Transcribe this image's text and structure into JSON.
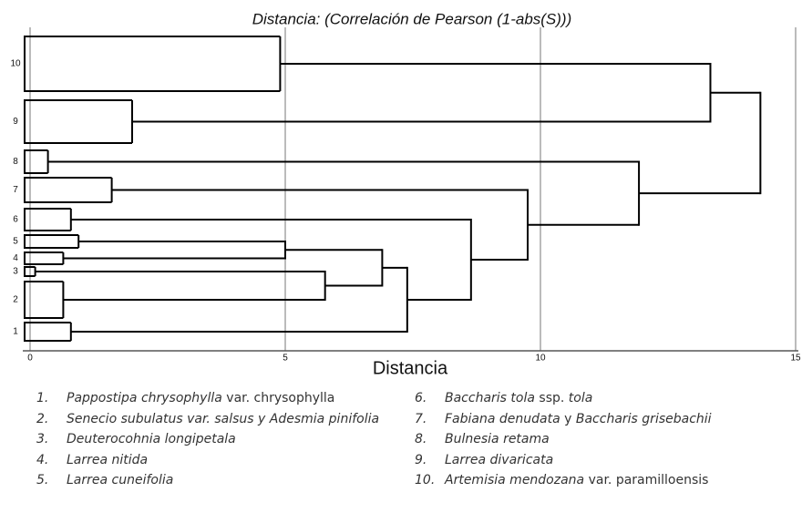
{
  "chart_data": {
    "type": "dendrogram",
    "title": "Distancia: (Correlación de Pearson (1-abs(S)))",
    "x_label": "Distancia",
    "xlim": [
      0,
      15
    ],
    "xticks": [
      0,
      5,
      10,
      15
    ],
    "grid": true,
    "line_color": "#000000",
    "tree": {
      "height": 14.31,
      "children": [
        {
          "height": 13.33,
          "children": [
            {
              "label": "10",
              "height": 4.9
            },
            {
              "label": "9",
              "height": 2.0
            }
          ]
        },
        {
          "height": 11.93,
          "children": [
            {
              "label": "8",
              "height": 0.35
            },
            {
              "height": 9.75,
              "children": [
                {
                  "label": "7",
                  "height": 1.6
                },
                {
                  "height": 8.64,
                  "children": [
                    {
                      "label": "6",
                      "height": 0.8
                    },
                    {
                      "height": 7.39,
                      "children": [
                        {
                          "height": 6.9,
                          "children": [
                            {
                              "height": 5.0,
                              "children": [
                                {
                                  "label": "5",
                                  "height": 0.95
                                },
                                {
                                  "label": "4",
                                  "height": 0.65
                                }
                              ]
                            },
                            {
                              "height": 5.78,
                              "children": [
                                {
                                  "label": "3",
                                  "height": 0.1
                                },
                                {
                                  "label": "2",
                                  "height": 0.65
                                }
                              ]
                            }
                          ]
                        },
                        {
                          "label": "1",
                          "height": 0.8
                        }
                      ]
                    }
                  ]
                }
              ]
            }
          ]
        }
      ]
    }
  },
  "legend": [
    {
      "number": "1.",
      "parts": [
        {
          "text": "Pappostipa chrysophylla",
          "italic": true
        },
        {
          "text": "var. chrysophylla",
          "italic": false
        }
      ]
    },
    {
      "number": "2.",
      "parts": [
        {
          "text": "Senecio subulatus var. salsus y Adesmia pinifolia",
          "italic": true
        }
      ]
    },
    {
      "number": "3.",
      "parts": [
        {
          "text": "Deuterocohnia longipetala",
          "italic": true
        }
      ]
    },
    {
      "number": "4.",
      "parts": [
        {
          "text": "Larrea nitida",
          "italic": true
        }
      ]
    },
    {
      "number": "5.",
      "parts": [
        {
          "text": "Larrea cuneifolia",
          "italic": true
        }
      ]
    },
    {
      "number": "6.",
      "parts": [
        {
          "text": "Baccharis tola",
          "italic": true
        },
        {
          "text": "ssp.",
          "italic": false
        },
        {
          "text": "tola",
          "italic": true
        }
      ]
    },
    {
      "number": "7.",
      "parts": [
        {
          "text": "Fabiana denudata",
          "italic": true
        },
        {
          "text": "y",
          "italic": false
        },
        {
          "text": "Baccharis grisebachii",
          "italic": true
        }
      ]
    },
    {
      "number": "8.",
      "parts": [
        {
          "text": "Bulnesia retama",
          "italic": true
        }
      ]
    },
    {
      "number": "9.",
      "parts": [
        {
          "text": "Larrea divaricata",
          "italic": true
        }
      ]
    },
    {
      "number": "10.",
      "parts": [
        {
          "text": "Artemisia mendozana",
          "italic": true
        },
        {
          "text": "var. paramilloensis",
          "italic": false
        }
      ]
    }
  ]
}
